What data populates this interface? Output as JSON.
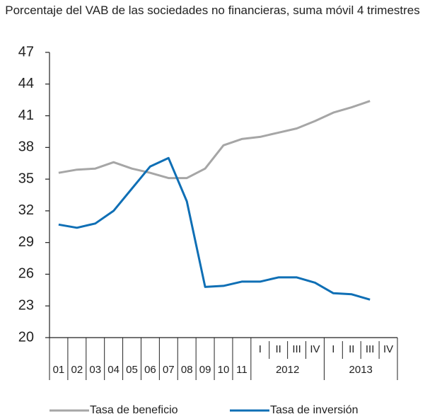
{
  "chart_data": {
    "type": "line",
    "title": "Porcentaje del VAB de las sociedades no financieras, suma móvil 4 trimestres",
    "categories": [
      "01",
      "02",
      "03",
      "04",
      "05",
      "06",
      "07",
      "08",
      "09",
      "10",
      "11",
      "I",
      "II",
      "III",
      "IV",
      "I",
      "II",
      "III",
      "IV"
    ],
    "year_groups": [
      "2012",
      "2013"
    ],
    "series": [
      {
        "name": "Tasa de beneficio",
        "color": "#a6a6a6",
        "values": [
          35.6,
          35.9,
          36.0,
          36.6,
          36.0,
          35.6,
          35.1,
          35.1,
          36.0,
          38.2,
          38.8,
          39.0,
          39.4,
          39.8,
          40.5,
          41.3,
          41.8,
          42.4,
          null
        ]
      },
      {
        "name": "Tasa de inversión",
        "color": "#0f6fb5",
        "values": [
          30.7,
          30.4,
          30.8,
          32.0,
          34.1,
          36.2,
          37.0,
          32.9,
          24.8,
          24.9,
          25.3,
          25.3,
          25.7,
          25.7,
          25.2,
          24.2,
          24.1,
          23.6,
          null
        ]
      }
    ],
    "ylim": [
      20,
      47
    ],
    "yticks": [
      20,
      23,
      26,
      29,
      32,
      35,
      38,
      41,
      44,
      47
    ]
  }
}
